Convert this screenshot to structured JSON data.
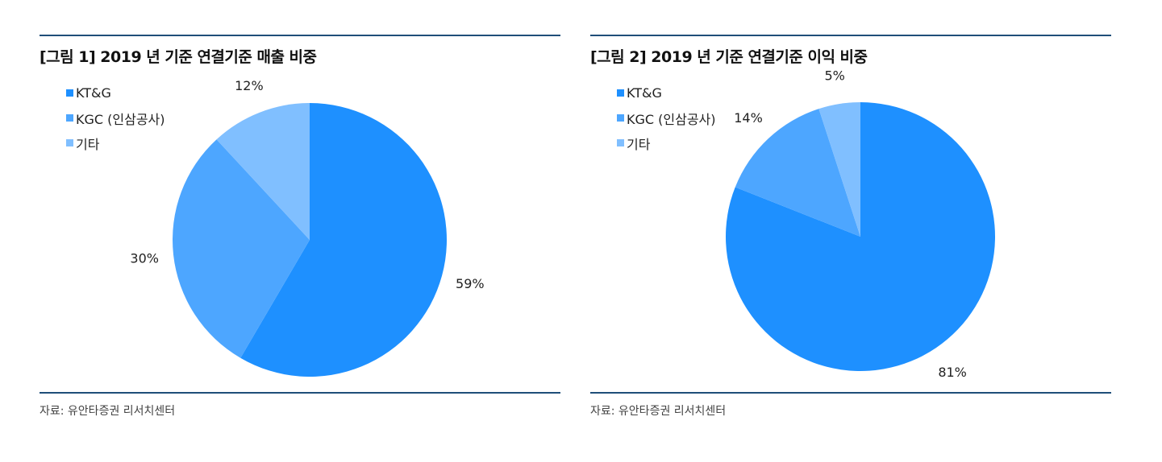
{
  "chart_data": [
    {
      "type": "pie",
      "title": "[그림 1] 2019 년 기준 연결기준 매출 비중",
      "categories": [
        "KT&G",
        "KGC (인삼공사)",
        "기타"
      ],
      "values": [
        59,
        30,
        12
      ],
      "data_labels": [
        "59%",
        "30%",
        "12%"
      ],
      "colors": [
        "#1e90ff",
        "#4da6ff",
        "#80bfff"
      ],
      "legend": "top-left",
      "source": "자료: 유안타증권 리서치센터"
    },
    {
      "type": "pie",
      "title": "[그림 2] 2019 년 기준 연결기준 이익 비중",
      "categories": [
        "KT&G",
        "KGC (인삼공사)",
        "기타"
      ],
      "values": [
        81,
        14,
        5
      ],
      "data_labels": [
        "81%",
        "14%",
        "5%"
      ],
      "colors": [
        "#1e90ff",
        "#4da6ff",
        "#80bfff"
      ],
      "legend": "top-left",
      "source": "자료: 유안타증권 리서치센터"
    }
  ]
}
